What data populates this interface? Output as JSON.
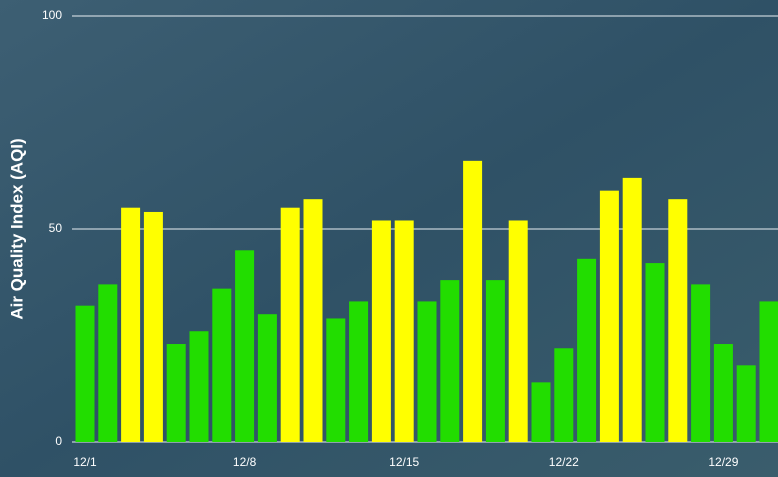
{
  "chart_data": {
    "type": "bar",
    "y_label": "Air Quality Index (AQI)",
    "categories": [
      "12/1",
      null,
      null,
      null,
      null,
      null,
      null,
      "12/8",
      null,
      null,
      null,
      null,
      null,
      null,
      "12/15",
      null,
      null,
      null,
      null,
      null,
      null,
      "12/22",
      null,
      null,
      null,
      null,
      null,
      null,
      "12/29",
      null,
      null
    ],
    "values": [
      32,
      37,
      55,
      54,
      23,
      26,
      36,
      45,
      30,
      55,
      57,
      29,
      33,
      52,
      52,
      33,
      38,
      66,
      38,
      52,
      14,
      22,
      43,
      59,
      62,
      42,
      57,
      37,
      23,
      18,
      33
    ],
    "colors": [
      "#22dd00",
      "#22dd00",
      "#ffff00",
      "#ffff00",
      "#22dd00",
      "#22dd00",
      "#22dd00",
      "#22dd00",
      "#22dd00",
      "#ffff00",
      "#ffff00",
      "#22dd00",
      "#22dd00",
      "#ffff00",
      "#ffff00",
      "#22dd00",
      "#22dd00",
      "#ffff00",
      "#22dd00",
      "#ffff00",
      "#22dd00",
      "#22dd00",
      "#22dd00",
      "#ffff00",
      "#ffff00",
      "#22dd00",
      "#ffff00",
      "#22dd00",
      "#22dd00",
      "#22dd00",
      "#22dd00"
    ],
    "ylim": [
      0,
      100
    ],
    "yticks": [
      0,
      50,
      100
    ],
    "grid": true
  }
}
